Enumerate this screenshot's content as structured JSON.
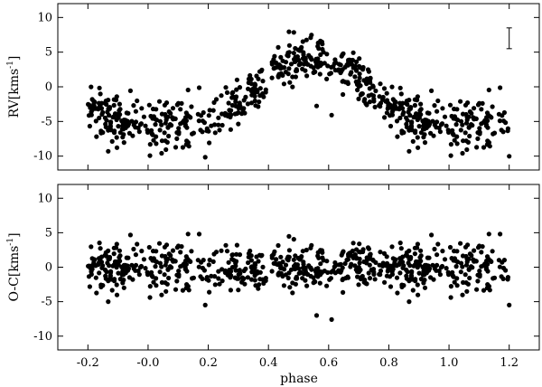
{
  "chart_data": [
    {
      "type": "scatter",
      "panel": "top",
      "title": "",
      "xlabel": "phase",
      "ylabel_main": "RV[kms",
      "ylabel_sup": "-1",
      "ylabel_end": "]",
      "xlim": [
        -0.3,
        1.3
      ],
      "ylim": [
        -12,
        12
      ],
      "xticks": [
        -0.2,
        0.0,
        0.2,
        0.4,
        0.6,
        0.8,
        1.0,
        1.2
      ],
      "xtick_labels": [
        "-0.2",
        "-0.0",
        "0.2",
        "0.4",
        "0.6",
        "0.8",
        "1.0",
        "1.2"
      ],
      "yticks": [
        -10,
        -5,
        0,
        5,
        10
      ],
      "ytick_labels": [
        "-10",
        "-5",
        "0",
        "5",
        "10"
      ],
      "error_bar": {
        "x": 1.2,
        "y_low": 5.5,
        "y_high": 8.5
      },
      "model": {
        "amplitude": 5.8,
        "mean": -0.3,
        "peak_phase": 0.54
      },
      "n_points": 520
    },
    {
      "type": "scatter",
      "panel": "bottom",
      "title": "",
      "xlabel": "phase",
      "ylabel_main": "O-C[kms",
      "ylabel_sup": "-1",
      "ylabel_end": "]",
      "xlim": [
        -0.3,
        1.3
      ],
      "ylim": [
        -12,
        12
      ],
      "xticks": [
        -0.2,
        0.0,
        0.2,
        0.4,
        0.6,
        0.8,
        1.0,
        1.2
      ],
      "xtick_labels": [
        "-0.2",
        "-0.0",
        "0.2",
        "0.4",
        "0.6",
        "0.8",
        "1.0",
        "1.2"
      ],
      "yticks": [
        -10,
        -5,
        0,
        5,
        10
      ],
      "ytick_labels": [
        "-10",
        "-5",
        "0",
        "5",
        "10"
      ],
      "residual_spread": 1.6,
      "outliers": [
        {
          "x": 0.19,
          "y": -5.5
        },
        {
          "x": 0.56,
          "y": -7.0
        },
        {
          "x": 0.61,
          "y": -7.6
        },
        {
          "x": 1.2,
          "y": -5.5
        }
      ],
      "n_points": 520
    }
  ]
}
